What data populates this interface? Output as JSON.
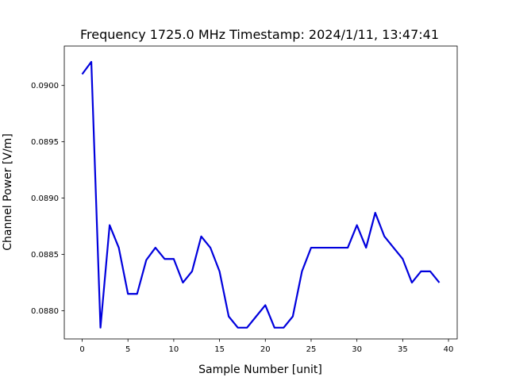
{
  "chart_data": {
    "type": "line",
    "title": "Frequency 1725.0 MHz Timestamp: 2024/1/11, 13:47:41",
    "xlabel": "Sample Number [unit]",
    "ylabel": "Channel Power [V/m]",
    "xlim": [
      -1.95,
      40.95
    ],
    "ylim": [
      0.08775,
      0.09035
    ],
    "grid": false,
    "line_color": "#0000dd",
    "x_ticks": [
      0,
      5,
      10,
      15,
      20,
      25,
      30,
      35,
      40
    ],
    "x_tick_labels": [
      "0",
      "5",
      "10",
      "15",
      "20",
      "25",
      "30",
      "35",
      "40"
    ],
    "y_ticks": [
      0.088,
      0.0885,
      0.089,
      0.0895,
      0.09
    ],
    "y_tick_labels": [
      "0.0880",
      "0.0885",
      "0.0890",
      "0.0895",
      "0.0900"
    ],
    "series": [
      {
        "x": [
          0,
          1,
          2,
          3,
          4,
          5,
          6,
          7,
          8,
          9,
          10,
          11,
          12,
          13,
          14,
          15,
          16,
          17,
          18,
          19,
          20,
          21,
          22,
          23,
          24,
          25,
          26,
          27,
          28,
          29,
          30,
          31,
          32,
          33,
          34,
          35,
          36,
          37,
          38,
          39
        ],
        "values": [
          0.0901,
          0.09021,
          0.08785,
          0.08876,
          0.08856,
          0.08815,
          0.08815,
          0.08845,
          0.08856,
          0.08846,
          0.08846,
          0.08825,
          0.08835,
          0.08866,
          0.08856,
          0.08835,
          0.08795,
          0.08785,
          0.08785,
          0.08795,
          0.08805,
          0.08785,
          0.08785,
          0.08795,
          0.08835,
          0.08856,
          0.08856,
          0.08856,
          0.08856,
          0.08856,
          0.08876,
          0.08856,
          0.08887,
          0.08866,
          0.08856,
          0.08846,
          0.08825,
          0.08835,
          0.08835,
          0.08825
        ]
      }
    ]
  }
}
